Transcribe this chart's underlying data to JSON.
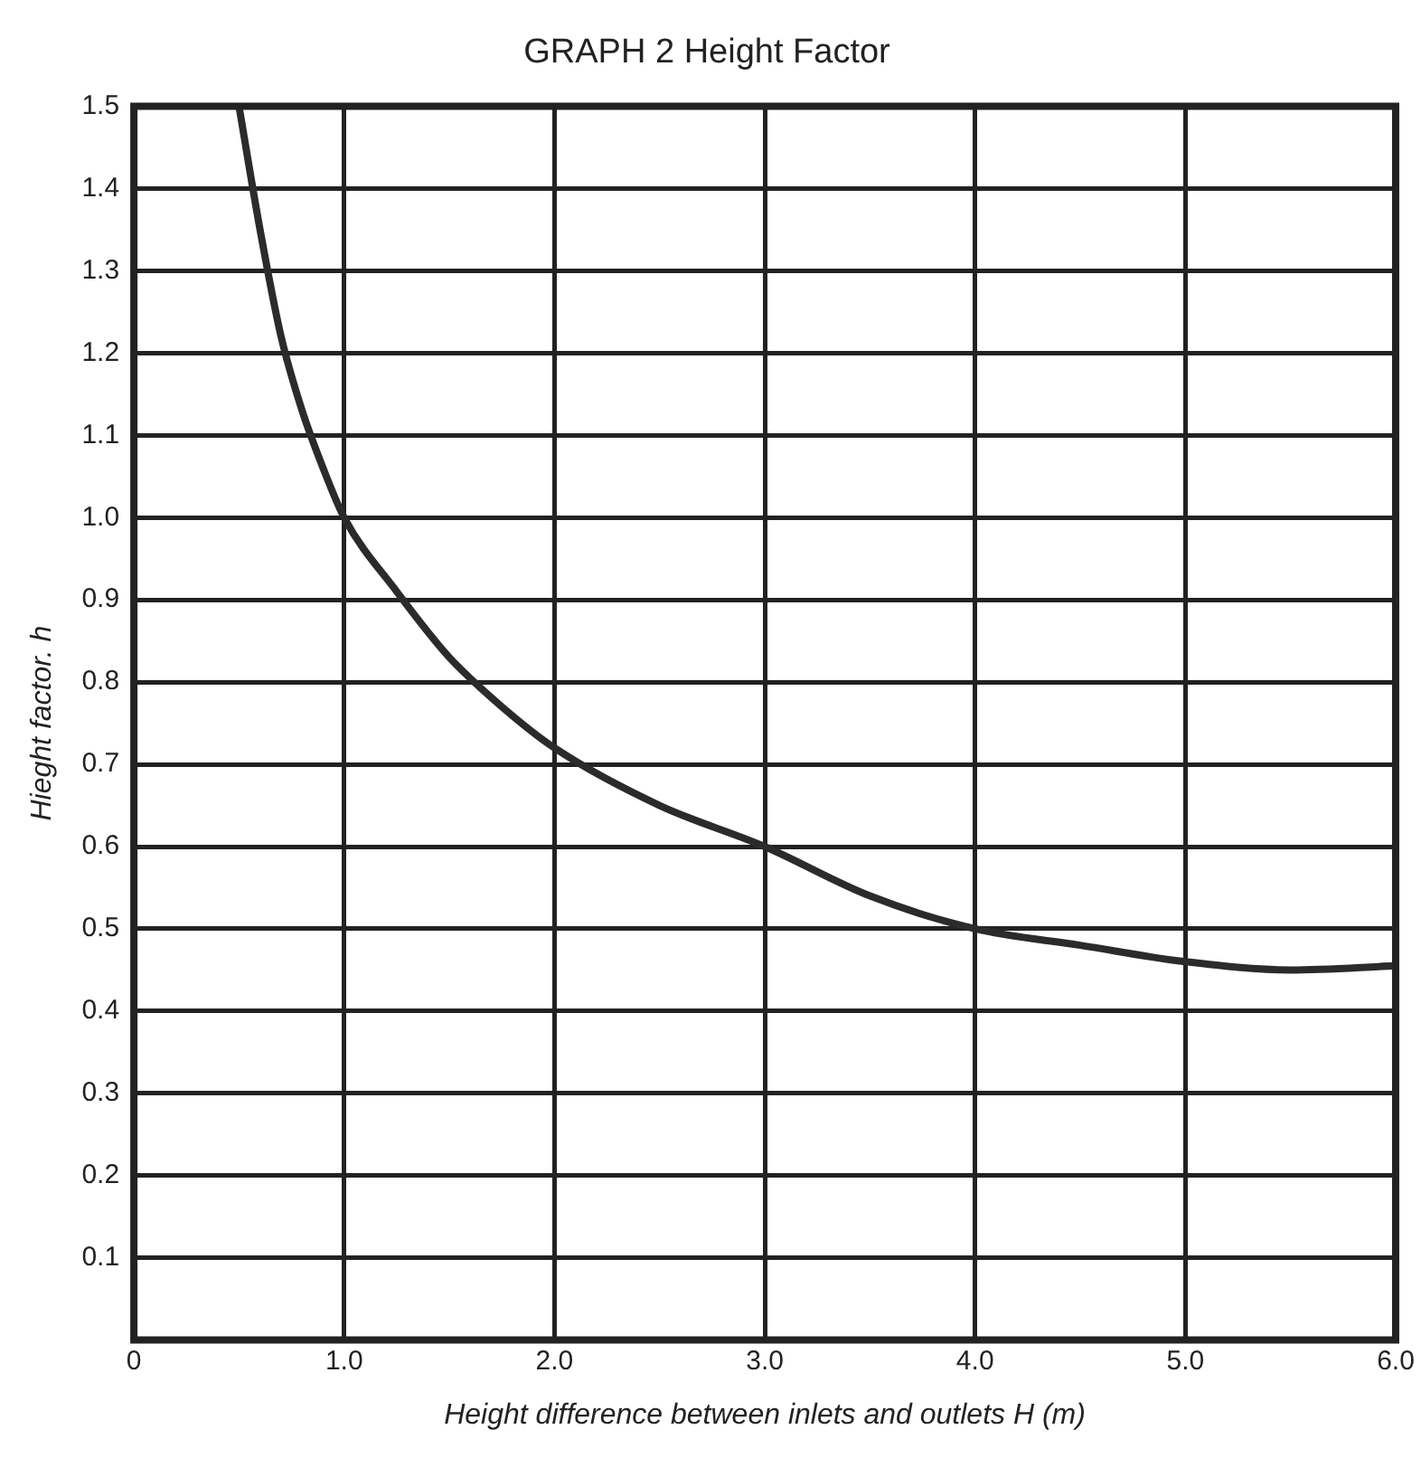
{
  "chart_data": {
    "type": "line",
    "title": "GRAPH 2 Height Factor",
    "xlabel": "Height difference between inlets and outlets H (m)",
    "ylabel": "Hieght factor. h",
    "x": [
      0.5,
      0.6,
      0.7,
      0.8,
      0.9,
      1.0,
      1.25,
      1.5,
      1.75,
      2.0,
      2.5,
      3.0,
      3.5,
      4.0,
      4.5,
      5.0,
      5.5,
      6.0
    ],
    "series": [
      {
        "color": "#2b2b2b",
        "values": [
          1.5,
          1.35,
          1.22,
          1.13,
          1.06,
          1.0,
          0.91,
          0.83,
          0.77,
          0.72,
          0.65,
          0.6,
          0.54,
          0.5,
          0.48,
          0.46,
          0.45,
          0.455
        ]
      }
    ],
    "xlim": [
      0,
      6
    ],
    "xticks": [
      0,
      {
        "value": 1,
        "label": "1.0"
      },
      {
        "value": 2,
        "label": "2.0"
      },
      {
        "value": 3,
        "label": "3.0"
      },
      {
        "value": 4,
        "label": "4.0"
      },
      {
        "value": 5,
        "label": "5.0"
      },
      {
        "value": 6,
        "label": "6.0"
      }
    ],
    "ylim": [
      0,
      1.5
    ],
    "yticks": [
      0.1,
      0.2,
      0.3,
      0.4,
      0.5,
      0.6,
      0.7,
      0.8,
      0.9,
      {
        "value": 1,
        "label": "1.0"
      },
      1.1,
      1.2,
      1.3,
      1.4,
      1.5
    ],
    "grid": true,
    "legend": false,
    "marker": "none",
    "line_style": "solid"
  }
}
